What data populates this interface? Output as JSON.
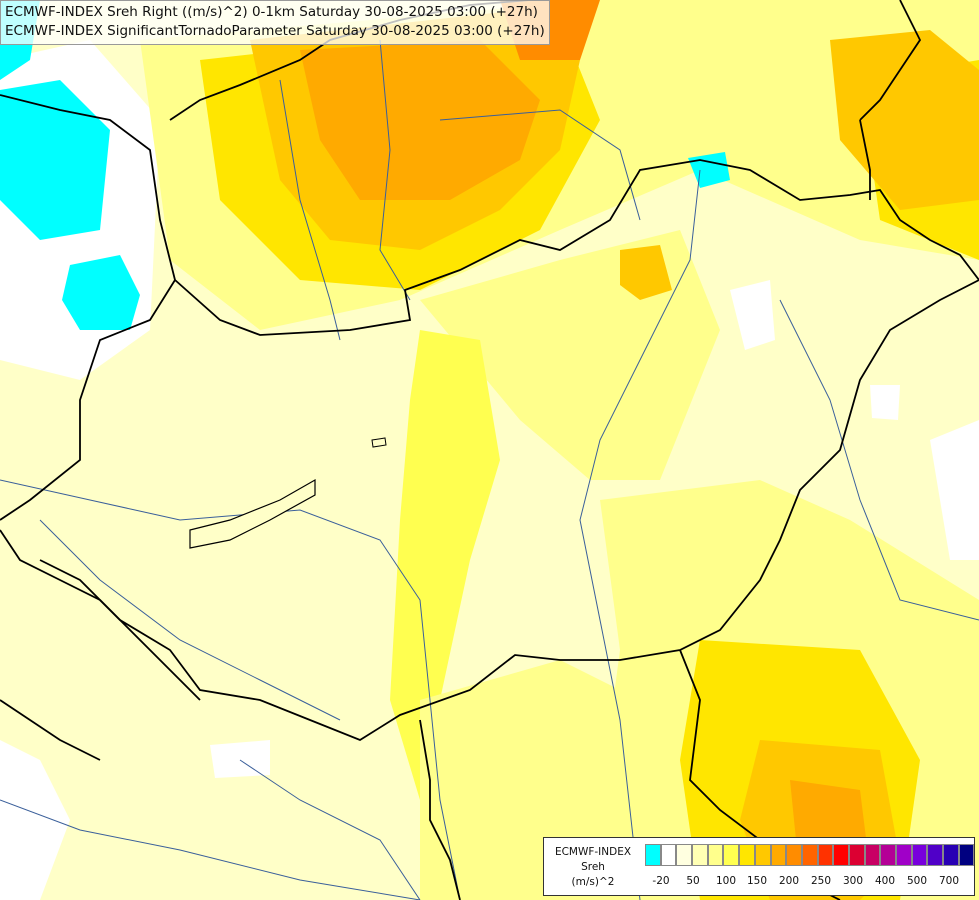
{
  "titles": [
    "ECMWF-INDEX Sreh Right ((m/s)^2) 0-1km Saturday 30-08-2025 03:00 (+27h)",
    "ECMWF-INDEX SignificantTornadoParameter Saturday 30-08-2025 03:00 (+27h)"
  ],
  "legend": {
    "line1": "ECMWF-INDEX",
    "line2": "Sreh",
    "line3": "(m/s)^2",
    "colors": [
      "#00ffff",
      "#ffffff",
      "#ffffe0",
      "#ffffb4",
      "#ffff8c",
      "#ffff50",
      "#ffe600",
      "#ffc800",
      "#ffaa00",
      "#ff8c00",
      "#ff6400",
      "#ff3200",
      "#ff0000",
      "#dc0032",
      "#c80064",
      "#b40096",
      "#a000c8",
      "#7800dc",
      "#5000c8",
      "#2800b4",
      "#000080"
    ],
    "ticks": [
      "-20",
      "50",
      "100",
      "150",
      "200",
      "250",
      "300",
      "400",
      "500",
      "700"
    ]
  },
  "map_colors": {
    "base": "#ffffc8",
    "light_yellow": "#ffff8c",
    "yellow": "#ffff50",
    "gold": "#ffe600",
    "light_orange": "#ffc800",
    "orange": "#ffaa00",
    "dark_orange": "#ff8c00",
    "cyan": "#00ffff",
    "white": "#ffffff",
    "border": "#000000",
    "river": "#3a5f9a"
  }
}
